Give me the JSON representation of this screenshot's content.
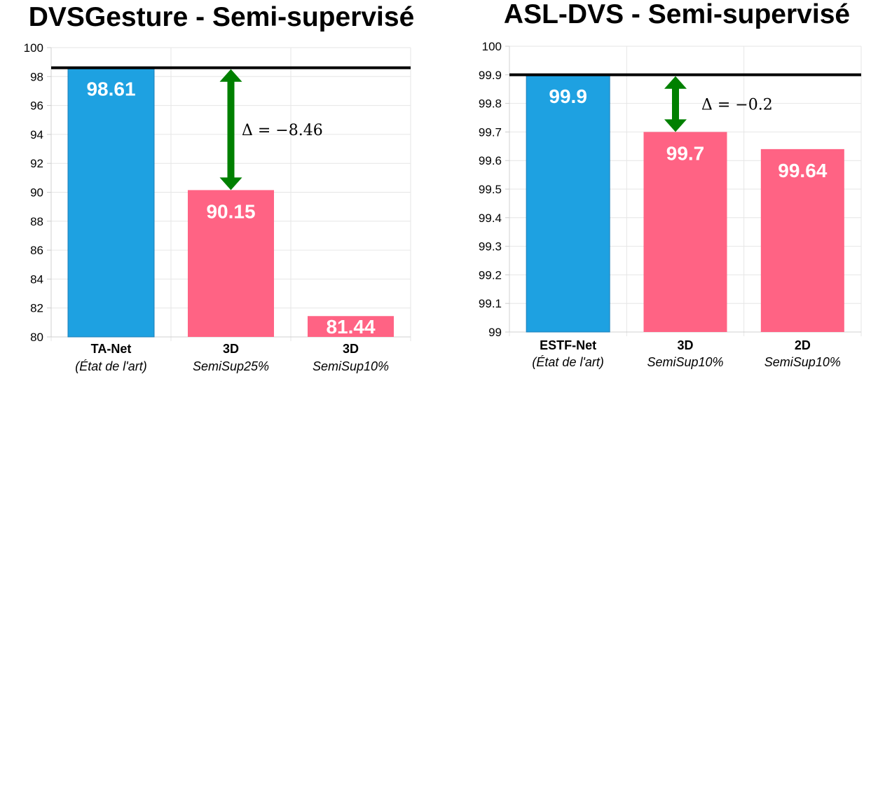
{
  "chart_data": [
    {
      "type": "bar",
      "title": "DVSGesture - Semi-supervisé",
      "categories": [
        "TA-Net",
        "3D",
        "3D"
      ],
      "category_sublabels": [
        "(État de l'art)",
        "SemiSup25%",
        "SemiSup10%"
      ],
      "values": [
        98.61,
        90.15,
        81.44
      ],
      "value_labels": [
        "98.61",
        "90.15",
        "81.44"
      ],
      "bar_colors": [
        "#1ea1e1",
        "#ff6384",
        "#ff6384"
      ],
      "ylim": [
        80,
        100
      ],
      "yticks": [
        "80",
        "82",
        "84",
        "86",
        "88",
        "90",
        "92",
        "94",
        "96",
        "98",
        "100"
      ],
      "reference_line": 98.61,
      "annotation": {
        "text": "Δ = −8.46",
        "from": 98.61,
        "to": 90.15,
        "color": "#008000"
      },
      "grid": true,
      "xlabel": "",
      "ylabel": ""
    },
    {
      "type": "bar",
      "title": "ASL-DVS - Semi-supervisé",
      "categories": [
        "ESTF-Net",
        "3D",
        "2D"
      ],
      "category_sublabels": [
        "(État de l'art)",
        "SemiSup10%",
        "SemiSup10%"
      ],
      "values": [
        99.9,
        99.7,
        99.64
      ],
      "value_labels": [
        "99.9",
        "99.7",
        "99.64"
      ],
      "bar_colors": [
        "#1ea1e1",
        "#ff6384",
        "#ff6384"
      ],
      "ylim": [
        99,
        100
      ],
      "yticks": [
        "99",
        "99.1",
        "99.2",
        "99.3",
        "99.4",
        "99.5",
        "99.6",
        "99.7",
        "99.8",
        "99.9",
        "100"
      ],
      "reference_line": 99.9,
      "annotation": {
        "text": "Δ = −0.2",
        "from": 99.9,
        "to": 99.7,
        "color": "#008000"
      },
      "grid": true,
      "xlabel": "",
      "ylabel": ""
    }
  ]
}
